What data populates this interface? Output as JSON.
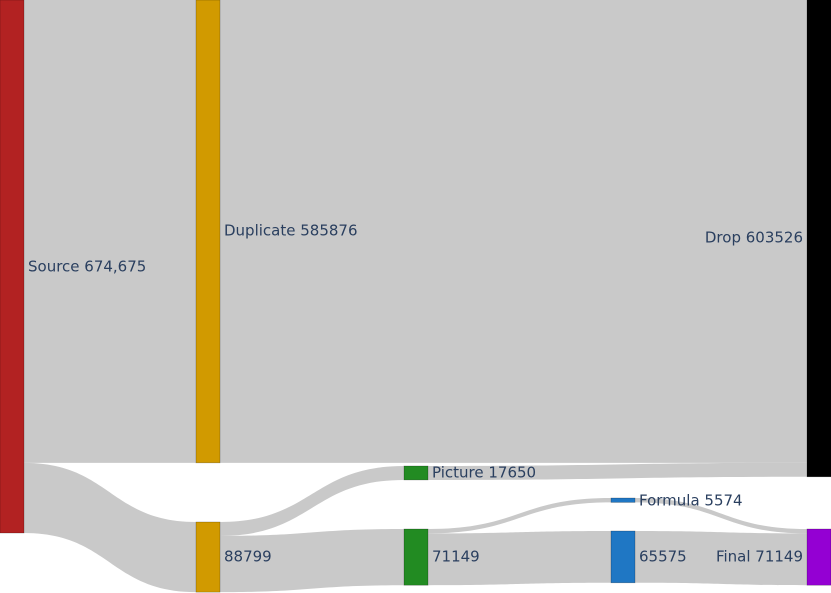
{
  "chart_data": {
    "type": "sankey",
    "title": "",
    "nodes": [
      {
        "id": "source",
        "label": "Source 674,675",
        "color": "#b22222"
      },
      {
        "id": "duplicate",
        "label": "Duplicate 585876",
        "color": "#d19a00"
      },
      {
        "id": "kept",
        "label": "88799",
        "color": "#d19a00"
      },
      {
        "id": "picture",
        "label": "Picture 17650",
        "color": "#228b22"
      },
      {
        "id": "text",
        "label": "71149",
        "color": "#228b22"
      },
      {
        "id": "formula",
        "label": "Formula 5574",
        "color": "#1f77c4"
      },
      {
        "id": "clean",
        "label": "65575",
        "color": "#1f77c4"
      },
      {
        "id": "drop",
        "label": "Drop 603526",
        "color": "#000000"
      },
      {
        "id": "final",
        "label": "Final 71149",
        "color": "#9400d3"
      }
    ],
    "links": [
      {
        "source": "source",
        "target": "duplicate",
        "value": 585876
      },
      {
        "source": "source",
        "target": "kept",
        "value": 88799
      },
      {
        "source": "duplicate",
        "target": "drop",
        "value": 585876
      },
      {
        "source": "kept",
        "target": "picture",
        "value": 17650
      },
      {
        "source": "kept",
        "target": "text",
        "value": 71149
      },
      {
        "source": "picture",
        "target": "drop",
        "value": 17650
      },
      {
        "source": "text",
        "target": "formula",
        "value": 5574
      },
      {
        "source": "text",
        "target": "clean",
        "value": 65575
      },
      {
        "source": "formula",
        "target": "final",
        "value": 5574
      },
      {
        "source": "clean",
        "target": "final",
        "value": 65575
      }
    ]
  }
}
